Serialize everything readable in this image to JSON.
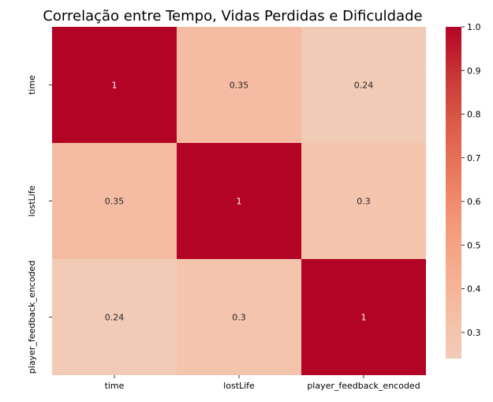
{
  "chart_data": {
    "type": "heatmap",
    "title": "Correlação entre Tempo, Vidas Perdidas e Dificuldade",
    "x_labels": [
      "time",
      "lostLife",
      "player_feedback_encoded"
    ],
    "y_labels": [
      "time",
      "lostLife",
      "player_feedback_encoded"
    ],
    "values": [
      [
        1,
        0.35,
        0.24
      ],
      [
        0.35,
        1,
        0.3
      ],
      [
        0.24,
        0.3,
        1
      ]
    ],
    "annotations": [
      [
        "1",
        "0.35",
        "0.24"
      ],
      [
        "0.35",
        "1",
        "0.3"
      ],
      [
        "0.24",
        "0.3",
        "1"
      ]
    ],
    "colorbar": {
      "min": 0.24,
      "max": 1.0,
      "ticks": [
        0.3,
        0.4,
        0.5,
        0.6,
        0.7,
        0.8,
        0.9,
        1.0
      ],
      "tick_labels": [
        "0.3",
        "0.4",
        "0.5",
        "0.6",
        "0.7",
        "0.8",
        "0.9",
        "1.0"
      ],
      "colormap": "coolwarm (upper half)",
      "low_color": "#f2cbb7",
      "high_color": "#b40426"
    }
  }
}
